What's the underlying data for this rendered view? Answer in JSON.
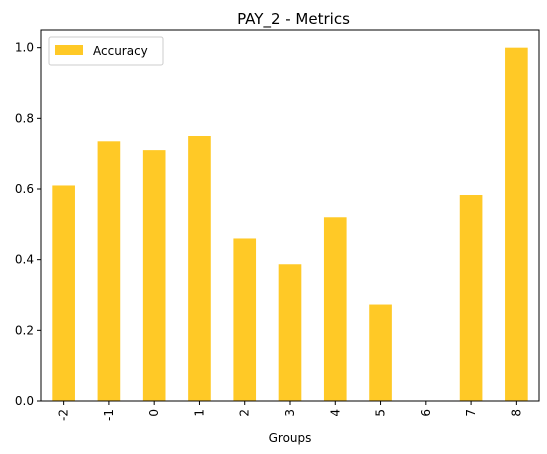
{
  "chart_data": {
    "type": "bar",
    "title": "PAY_2 - Metrics",
    "xlabel": "Groups",
    "ylabel": "",
    "categories": [
      "-2",
      "-1",
      "0",
      "1",
      "2",
      "3",
      "4",
      "5",
      "6",
      "7",
      "8"
    ],
    "series": [
      {
        "name": "Accuracy",
        "values": [
          0.61,
          0.735,
          0.71,
          0.75,
          0.46,
          0.387,
          0.52,
          0.273,
          0.0,
          0.583,
          1.0
        ],
        "color": "#ffc926"
      }
    ],
    "ylim": [
      0,
      1.05
    ],
    "yticks": [
      "0.0",
      "0.2",
      "0.4",
      "0.6",
      "0.8",
      "1.0"
    ],
    "x_tick_rotation": "vertical",
    "grid": false,
    "legend": "top-left"
  }
}
